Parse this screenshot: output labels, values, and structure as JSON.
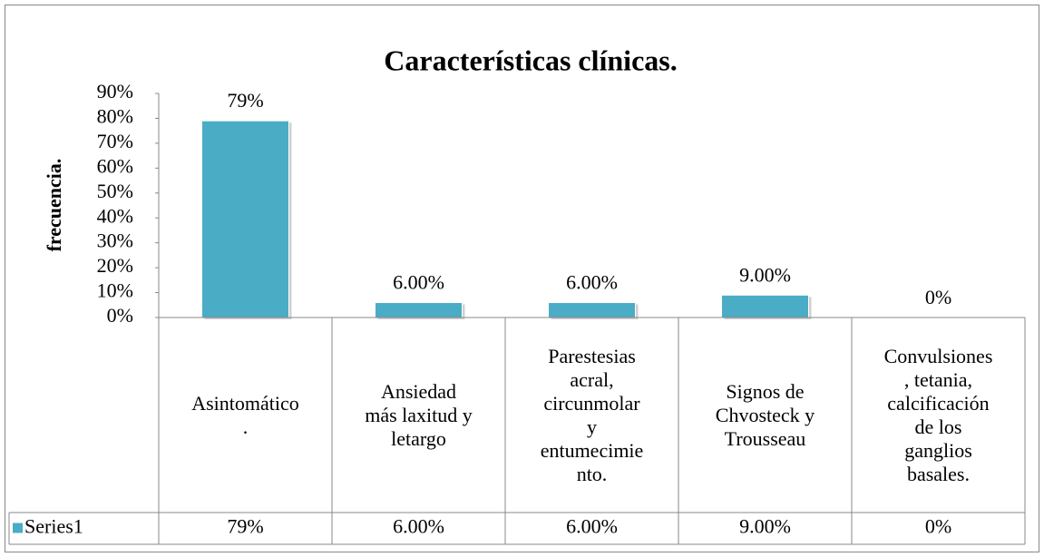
{
  "chart_data": {
    "type": "bar",
    "title": "Características clínicas.",
    "y_label": "frecuencia.",
    "categories": [
      "Asintomático\n.",
      "Ansiedad\nmás laxitud y\nletargo",
      "Parestesias\nacral,\ncircunmolar\ny\nentumecimie\nnto.",
      "Signos de\nChvosteck y\nTrousseau",
      "Convulsiones\n, tetania,\ncalcificación\nde los\nganglios\nbasales."
    ],
    "series": [
      {
        "name": "Series1",
        "color": "#4bacc6",
        "values": [
          79,
          6,
          6,
          9,
          0
        ],
        "value_labels": [
          "79%",
          "6.00%",
          "6.00%",
          "9.00%",
          "0%"
        ]
      }
    ],
    "ylim": [
      0,
      90
    ],
    "yticks": [
      {
        "value": 0,
        "label": "0%"
      },
      {
        "value": 10,
        "label": "10%"
      },
      {
        "value": 20,
        "label": "20%"
      },
      {
        "value": 30,
        "label": "30%"
      },
      {
        "value": 40,
        "label": "40%"
      },
      {
        "value": 50,
        "label": "50%"
      },
      {
        "value": 60,
        "label": "60%"
      },
      {
        "value": 70,
        "label": "70%"
      },
      {
        "value": 80,
        "label": "80%"
      },
      {
        "value": 90,
        "label": "90%"
      }
    ],
    "data_table": true
  }
}
